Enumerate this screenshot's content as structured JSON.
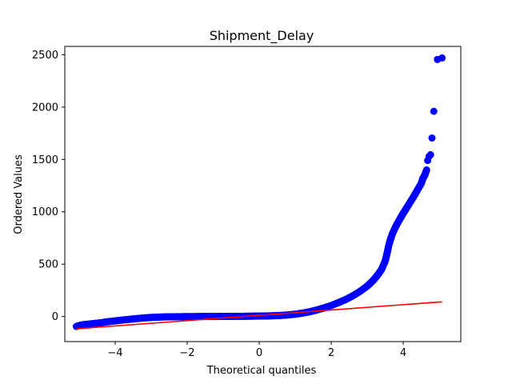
{
  "chart_data": {
    "type": "scatter",
    "title": "Shipment_Delay",
    "xlabel": "Theoretical quantiles",
    "ylabel": "Ordered Values",
    "xlim": [
      -5.4,
      5.6
    ],
    "ylim": [
      -240,
      2580
    ],
    "xticks": [
      -4,
      -2,
      0,
      2,
      4
    ],
    "yticks": [
      0,
      500,
      1000,
      1500,
      2000,
      2500
    ],
    "xtick_labels": [
      "−4",
      "−2",
      "0",
      "2",
      "4"
    ],
    "ytick_labels": [
      "0",
      "500",
      "1000",
      "1500",
      "2000",
      "2500"
    ],
    "grid": false,
    "series": [
      {
        "marker_color": "#0000ff",
        "points": [
          [
            -5.08,
            -95
          ],
          [
            -4.95,
            -82
          ],
          [
            -4.8,
            -75
          ],
          [
            -4.6,
            -68
          ],
          [
            -4.4,
            -60
          ],
          [
            -4.2,
            -50
          ],
          [
            -4.0,
            -42
          ],
          [
            -3.8,
            -34
          ],
          [
            -3.6,
            -27
          ],
          [
            -3.4,
            -20
          ],
          [
            -3.2,
            -14
          ],
          [
            -3.0,
            -9
          ],
          [
            -2.8,
            -6
          ],
          [
            -2.6,
            -4
          ],
          [
            -2.4,
            -3
          ],
          [
            -2.2,
            -2
          ],
          [
            -2.0,
            -1
          ],
          [
            -1.8,
            -1
          ],
          [
            -1.6,
            0
          ],
          [
            -1.4,
            0
          ],
          [
            -1.2,
            0
          ],
          [
            -1.0,
            1
          ],
          [
            -0.8,
            1
          ],
          [
            -0.6,
            2
          ],
          [
            -0.4,
            2
          ],
          [
            -0.2,
            3
          ],
          [
            0.0,
            4
          ],
          [
            0.2,
            5
          ],
          [
            0.4,
            7
          ],
          [
            0.6,
            10
          ],
          [
            0.8,
            15
          ],
          [
            1.0,
            22
          ],
          [
            1.2,
            32
          ],
          [
            1.4,
            45
          ],
          [
            1.6,
            62
          ],
          [
            1.8,
            82
          ],
          [
            2.0,
            105
          ],
          [
            2.2,
            132
          ],
          [
            2.4,
            162
          ],
          [
            2.6,
            197
          ],
          [
            2.8,
            240
          ],
          [
            3.0,
            290
          ],
          [
            3.1,
            322
          ],
          [
            3.2,
            358
          ],
          [
            3.3,
            400
          ],
          [
            3.4,
            450
          ],
          [
            3.5,
            530
          ],
          [
            3.55,
            600
          ],
          [
            3.6,
            680
          ],
          [
            3.65,
            740
          ],
          [
            3.7,
            790
          ],
          [
            3.8,
            865
          ],
          [
            3.9,
            925
          ],
          [
            4.0,
            985
          ],
          [
            4.1,
            1040
          ],
          [
            4.2,
            1095
          ],
          [
            4.3,
            1150
          ],
          [
            4.4,
            1210
          ],
          [
            4.5,
            1270
          ],
          [
            4.55,
            1320
          ],
          [
            4.6,
            1350
          ],
          [
            4.65,
            1400
          ],
          [
            4.68,
            1490
          ],
          [
            4.72,
            1530
          ],
          [
            4.76,
            1545
          ],
          [
            4.8,
            1705
          ],
          [
            4.85,
            1960
          ],
          [
            4.95,
            2455
          ],
          [
            5.08,
            2470
          ]
        ]
      },
      {
        "line_color": "#ff0000",
        "line": [
          [
            -5.08,
            -118
          ],
          [
            5.08,
            140
          ]
        ]
      }
    ]
  }
}
